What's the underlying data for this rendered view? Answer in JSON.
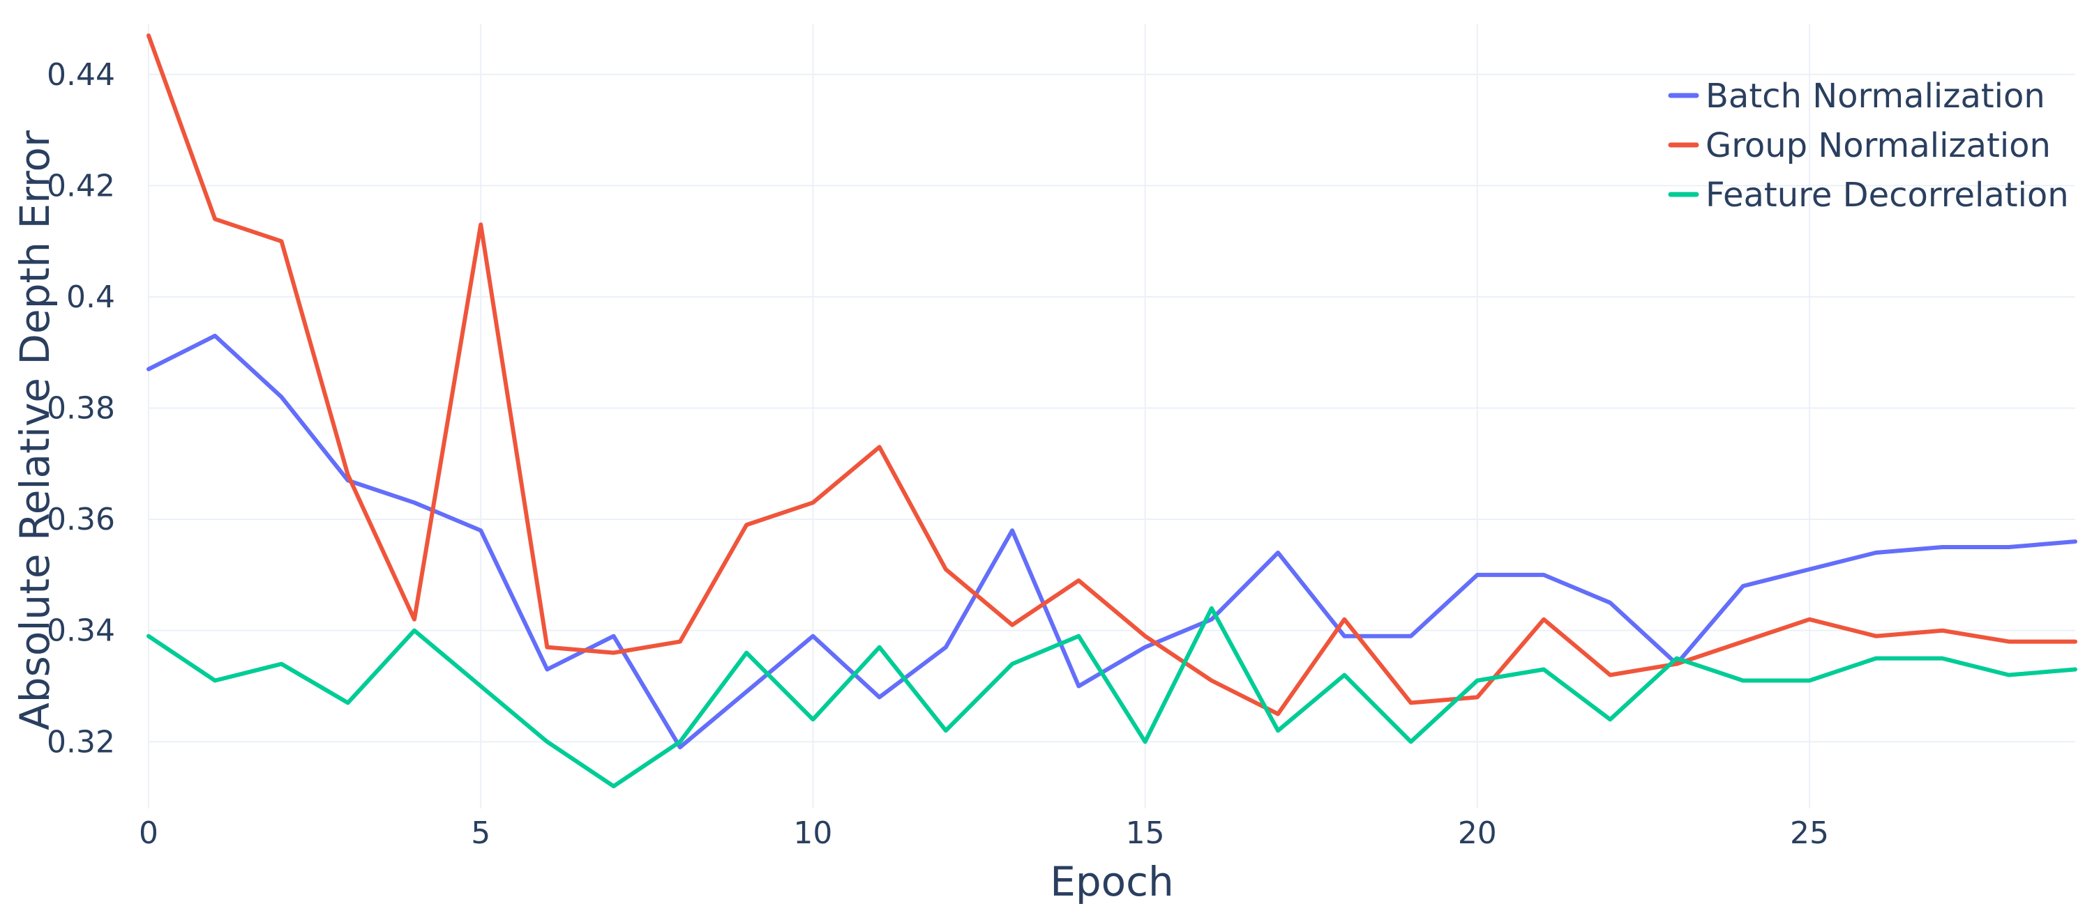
{
  "chart_data": {
    "type": "line",
    "xlabel": "Epoch",
    "ylabel": "Absolute Relative Depth Error",
    "xlim": [
      0,
      29
    ],
    "ylim": [
      0.308,
      0.449
    ],
    "xticks": [
      0,
      5,
      10,
      15,
      20,
      25
    ],
    "yticks": [
      0.32,
      0.34,
      0.36,
      0.38,
      0.4,
      0.42,
      0.44
    ],
    "xtick_labels": [
      "0",
      "5",
      "10",
      "15",
      "20",
      "25"
    ],
    "ytick_labels": [
      "0.32",
      "0.34",
      "0.36",
      "0.38",
      "0.4",
      "0.42",
      "0.44"
    ],
    "grid": true,
    "legend_position": "top-right",
    "x": [
      0,
      1,
      2,
      3,
      4,
      5,
      6,
      7,
      8,
      9,
      10,
      11,
      12,
      13,
      14,
      15,
      16,
      17,
      18,
      19,
      20,
      21,
      22,
      23,
      24,
      25,
      26,
      27,
      28,
      29
    ],
    "series": [
      {
        "name": "Batch Normalization",
        "color": "#636efa",
        "values": [
          0.387,
          0.393,
          0.382,
          0.367,
          0.363,
          0.358,
          0.333,
          0.339,
          0.319,
          0.329,
          0.339,
          0.328,
          0.337,
          0.358,
          0.33,
          0.337,
          0.342,
          0.354,
          0.339,
          0.339,
          0.35,
          0.35,
          0.345,
          0.334,
          0.348,
          0.351,
          0.354,
          0.355,
          0.355,
          0.356
        ]
      },
      {
        "name": "Group Normalization",
        "color": "#ef553b",
        "values": [
          0.447,
          0.414,
          0.41,
          0.368,
          0.342,
          0.413,
          0.337,
          0.336,
          0.338,
          0.359,
          0.363,
          0.373,
          0.351,
          0.341,
          0.349,
          0.339,
          0.331,
          0.325,
          0.342,
          0.327,
          0.328,
          0.342,
          0.332,
          0.334,
          0.338,
          0.342,
          0.339,
          0.34,
          0.338,
          0.338
        ]
      },
      {
        "name": "Feature Decorrelation",
        "color": "#00cc96",
        "values": [
          0.339,
          0.331,
          0.334,
          0.327,
          0.34,
          0.33,
          0.32,
          0.312,
          0.32,
          0.336,
          0.324,
          0.337,
          0.322,
          0.334,
          0.339,
          0.32,
          0.344,
          0.322,
          0.332,
          0.32,
          0.331,
          0.333,
          0.324,
          0.335,
          0.331,
          0.331,
          0.335,
          0.335,
          0.332,
          0.333
        ]
      }
    ]
  }
}
